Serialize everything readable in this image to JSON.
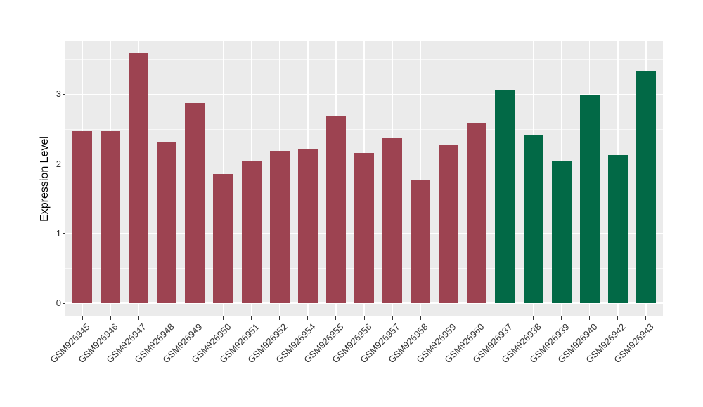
{
  "chart_data": {
    "type": "bar",
    "title": "",
    "ylabel": "Expression Level",
    "xlabel": "",
    "categories": [
      "GSM926945",
      "GSM926946",
      "GSM926947",
      "GSM926948",
      "GSM926949",
      "GSM926950",
      "GSM926951",
      "GSM926952",
      "GSM926954",
      "GSM926955",
      "GSM926956",
      "GSM926957",
      "GSM926958",
      "GSM926959",
      "GSM926960",
      "GSM926937",
      "GSM926938",
      "GSM926939",
      "GSM926940",
      "GSM926942",
      "GSM926943"
    ],
    "values": [
      2.47,
      2.47,
      3.6,
      2.32,
      2.87,
      1.86,
      2.05,
      2.19,
      2.21,
      2.69,
      2.16,
      2.38,
      1.77,
      2.27,
      2.59,
      3.06,
      2.42,
      2.04,
      2.98,
      2.13,
      3.34
    ],
    "bar_colors": [
      "#9D4351",
      "#9D4351",
      "#9D4351",
      "#9D4351",
      "#9D4351",
      "#9D4351",
      "#9D4351",
      "#9D4351",
      "#9D4351",
      "#9D4351",
      "#9D4351",
      "#9D4351",
      "#9D4351",
      "#9D4351",
      "#9D4351",
      "#026946",
      "#026946",
      "#026946",
      "#026946",
      "#026946",
      "#026946"
    ],
    "yticks": [
      0,
      1,
      2,
      3
    ],
    "yticks_minor": [
      0.5,
      1.5,
      2.5,
      3.5
    ],
    "ylim": [
      -0.19,
      3.76
    ],
    "bar_width_fraction": 0.7,
    "category_edge_padding": 0.6,
    "x_tick_label_angle_deg": 45,
    "legend_position": "none",
    "grid": {
      "horizontal_major": true,
      "horizontal_minor": true,
      "vertical_major_at_categories": true
    },
    "colors": {
      "figure_background": "#FFFFFF",
      "panel_background": "#EBEBEB",
      "gridline": "#FFFFFF",
      "bar_red": "#9D4351",
      "bar_green": "#026946",
      "axis_text": "#333333",
      "axis_title": "#000000",
      "tick_mark": "#333333"
    }
  }
}
